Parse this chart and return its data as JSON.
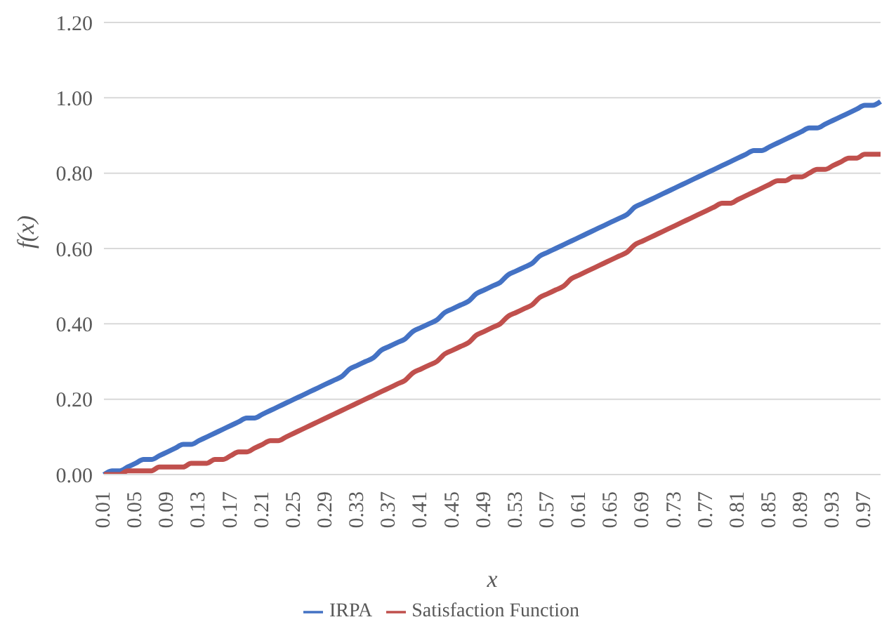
{
  "chart_data": {
    "type": "line",
    "xlabel": "x",
    "ylabel": "f(x)",
    "categories": [
      "0.01",
      null,
      null,
      null,
      "0.05",
      null,
      null,
      null,
      "0.09",
      null,
      null,
      null,
      "0.13",
      null,
      null,
      null,
      "0.17",
      null,
      null,
      null,
      "0.21",
      null,
      null,
      null,
      "0.25",
      null,
      null,
      null,
      "0.29",
      null,
      null,
      null,
      "0.33",
      null,
      null,
      null,
      "0.37",
      null,
      null,
      null,
      "0.41",
      null,
      null,
      null,
      "0.45",
      null,
      null,
      null,
      "0.49",
      null,
      null,
      null,
      "0.53",
      null,
      null,
      null,
      "0.57",
      null,
      null,
      null,
      "0.61",
      null,
      null,
      null,
      "0.65",
      null,
      null,
      null,
      "0.69",
      null,
      null,
      null,
      "0.73",
      null,
      null,
      null,
      "0.77",
      null,
      null,
      null,
      "0.81",
      null,
      null,
      null,
      "0.85",
      null,
      null,
      null,
      "0.89",
      null,
      null,
      null,
      "0.93",
      null,
      null,
      null,
      "0.97",
      null,
      null
    ],
    "series": [
      {
        "name": "IRPA",
        "color": "#4472c4",
        "values": [
          0.0,
          0.01,
          0.01,
          0.02,
          0.03,
          0.04,
          0.04,
          0.05,
          0.06,
          0.07,
          0.08,
          0.08,
          0.09,
          0.1,
          0.11,
          0.12,
          0.13,
          0.14,
          0.15,
          0.15,
          0.16,
          0.17,
          0.18,
          0.19,
          0.2,
          0.21,
          0.22,
          0.23,
          0.24,
          0.25,
          0.26,
          0.28,
          0.29,
          0.3,
          0.31,
          0.33,
          0.34,
          0.35,
          0.36,
          0.38,
          0.39,
          0.4,
          0.41,
          0.43,
          0.44,
          0.45,
          0.46,
          0.48,
          0.49,
          0.5,
          0.51,
          0.53,
          0.54,
          0.55,
          0.56,
          0.58,
          0.59,
          0.6,
          0.61,
          0.62,
          0.63,
          0.64,
          0.65,
          0.66,
          0.67,
          0.68,
          0.69,
          0.71,
          0.72,
          0.73,
          0.74,
          0.75,
          0.76,
          0.77,
          0.78,
          0.79,
          0.8,
          0.81,
          0.82,
          0.83,
          0.84,
          0.85,
          0.86,
          0.86,
          0.87,
          0.88,
          0.89,
          0.9,
          0.91,
          0.92,
          0.92,
          0.93,
          0.94,
          0.95,
          0.96,
          0.97,
          0.98,
          0.98,
          0.99
        ]
      },
      {
        "name": "Satisfaction Function",
        "color": "#c0504d",
        "values": [
          0.0,
          0.0,
          0.0,
          0.01,
          0.01,
          0.01,
          0.01,
          0.02,
          0.02,
          0.02,
          0.02,
          0.03,
          0.03,
          0.03,
          0.04,
          0.04,
          0.05,
          0.06,
          0.06,
          0.07,
          0.08,
          0.09,
          0.09,
          0.1,
          0.11,
          0.12,
          0.13,
          0.14,
          0.15,
          0.16,
          0.17,
          0.18,
          0.19,
          0.2,
          0.21,
          0.22,
          0.23,
          0.24,
          0.25,
          0.27,
          0.28,
          0.29,
          0.3,
          0.32,
          0.33,
          0.34,
          0.35,
          0.37,
          0.38,
          0.39,
          0.4,
          0.42,
          0.43,
          0.44,
          0.45,
          0.47,
          0.48,
          0.49,
          0.5,
          0.52,
          0.53,
          0.54,
          0.55,
          0.56,
          0.57,
          0.58,
          0.59,
          0.61,
          0.62,
          0.63,
          0.64,
          0.65,
          0.66,
          0.67,
          0.68,
          0.69,
          0.7,
          0.71,
          0.72,
          0.72,
          0.73,
          0.74,
          0.75,
          0.76,
          0.77,
          0.78,
          0.78,
          0.79,
          0.79,
          0.8,
          0.81,
          0.81,
          0.82,
          0.83,
          0.84,
          0.84,
          0.85,
          0.85,
          0.85
        ]
      }
    ],
    "ylim": [
      0,
      1.2
    ],
    "yticks": [
      {
        "value": 0,
        "label": "0.00"
      },
      {
        "value": 0.2,
        "label": "0.20"
      },
      {
        "value": 0.4,
        "label": "0.40"
      },
      {
        "value": 0.6,
        "label": "0.60"
      },
      {
        "value": 0.8,
        "label": "0.80"
      },
      {
        "value": 1,
        "label": "1.00"
      },
      {
        "value": 1.2,
        "label": "1.20"
      }
    ],
    "grid": "y",
    "legend": "bottom",
    "marker": "none",
    "line_style": "solid"
  }
}
